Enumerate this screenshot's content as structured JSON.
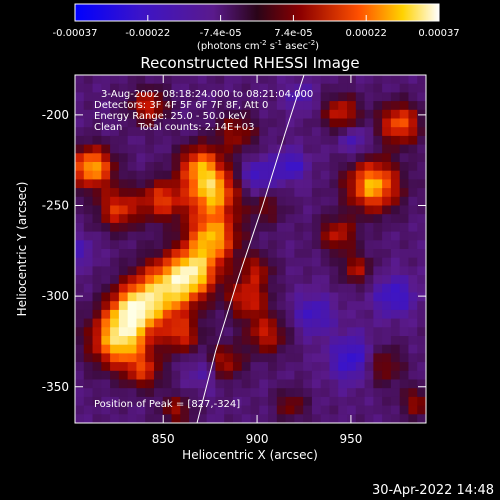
{
  "footer": {
    "datetime": "30-Apr-2022 14:48"
  },
  "colorbar": {
    "tick_labels": [
      "-0.00037",
      "-0.00022",
      "-7.4e-05",
      "7.4e-05",
      "0.00022",
      "0.00037"
    ],
    "range": [
      -0.00037,
      0.00037
    ],
    "unit_parts": [
      "(photons cm",
      "-2",
      " s",
      "-1",
      " asec",
      "-2",
      ")"
    ]
  },
  "chart_data": {
    "type": "heatmap",
    "title": "Reconstructed RHESSI Image",
    "xlabel": "Heliocentric X (arcsec)",
    "ylabel": "Heliocentric Y (arcsec)",
    "xlim": [
      803,
      990
    ],
    "ylim": [
      -370,
      -178
    ],
    "x_ticks": [
      850,
      900,
      950
    ],
    "y_ticks": [
      -200,
      -250,
      -300,
      -350
    ],
    "x_tick_labels": [
      "850",
      "900",
      "950"
    ],
    "y_tick_labels": [
      "-200",
      "-250",
      "-300",
      "-350"
    ],
    "annotations": [
      "3-Aug-2002 08:18:24.000 to 08:21:04.000",
      "Detectors: 3F 4F 5F 6F 7F 8F, Att 0",
      "Energy Range: 25.0 - 50.0 keV",
      "Clean     Total counts: 2.14E+03"
    ],
    "peak_label": "Position of Peak = [827,-324]",
    "peak": {
      "x": 827,
      "y": -324
    },
    "limb": [
      [
        868,
        -370
      ],
      [
        878,
        -330
      ],
      [
        890,
        -290
      ],
      [
        903,
        -250
      ],
      [
        915,
        -210
      ],
      [
        925,
        -178
      ]
    ],
    "blobs": [
      {
        "x": 827,
        "y": -324,
        "amp": 1.0,
        "s": 11
      },
      {
        "x": 834,
        "y": -307,
        "amp": 0.8,
        "s": 9
      },
      {
        "x": 851,
        "y": -297,
        "amp": 0.9,
        "s": 12
      },
      {
        "x": 866,
        "y": -287,
        "amp": 0.8,
        "s": 9
      },
      {
        "x": 876,
        "y": -268,
        "amp": 0.85,
        "s": 10
      },
      {
        "x": 876,
        "y": -242,
        "amp": 0.9,
        "s": 10
      },
      {
        "x": 869,
        "y": -227,
        "amp": 0.6,
        "s": 8
      },
      {
        "x": 849,
        "y": -247,
        "amp": 0.6,
        "s": 8
      },
      {
        "x": 826,
        "y": -252,
        "amp": 0.6,
        "s": 8
      },
      {
        "x": 812,
        "y": -229,
        "amp": 0.9,
        "s": 8
      },
      {
        "x": 842,
        "y": -195,
        "amp": 0.55,
        "s": 7
      },
      {
        "x": 895,
        "y": -301,
        "amp": 0.55,
        "s": 8
      },
      {
        "x": 905,
        "y": -321,
        "amp": 0.5,
        "s": 8
      },
      {
        "x": 882,
        "y": -337,
        "amp": 0.55,
        "s": 7
      },
      {
        "x": 860,
        "y": -322,
        "amp": 0.5,
        "s": 7
      },
      {
        "x": 840,
        "y": -342,
        "amp": 0.45,
        "s": 7
      },
      {
        "x": 962,
        "y": -239,
        "amp": 0.9,
        "s": 10
      },
      {
        "x": 976,
        "y": -205,
        "amp": 0.7,
        "s": 8
      },
      {
        "x": 945,
        "y": -199,
        "amp": 0.55,
        "s": 7
      },
      {
        "x": 943,
        "y": -266,
        "amp": 0.5,
        "s": 7
      },
      {
        "x": 953,
        "y": -285,
        "amp": 0.45,
        "s": 6
      },
      {
        "x": 966,
        "y": -338,
        "amp": 0.45,
        "s": 8
      },
      {
        "x": 985,
        "y": -359,
        "amp": 0.4,
        "s": 6
      },
      {
        "x": 905,
        "y": -251,
        "amp": 0.3,
        "s": 7
      },
      {
        "x": 918,
        "y": -360,
        "amp": 0.35,
        "s": 6
      },
      {
        "x": 857,
        "y": -363,
        "amp": 0.4,
        "s": 6
      },
      {
        "x": 889,
        "y": -210,
        "amp": 0.4,
        "s": 8
      },
      {
        "x": 900,
        "y": -285,
        "amp": 0.4,
        "s": 6
      },
      {
        "x": 930,
        "y": -310,
        "amp": -0.35,
        "s": 8
      },
      {
        "x": 952,
        "y": -335,
        "amp": -0.5,
        "s": 9
      },
      {
        "x": 973,
        "y": -300,
        "amp": -0.4,
        "s": 8
      },
      {
        "x": 900,
        "y": -234,
        "amp": -0.4,
        "s": 7
      },
      {
        "x": 918,
        "y": -228,
        "amp": -0.4,
        "s": 6
      },
      {
        "x": 873,
        "y": -341,
        "amp": -0.3,
        "s": 7
      },
      {
        "x": 952,
        "y": -214,
        "amp": -0.3,
        "s": 6
      },
      {
        "x": 805,
        "y": -275,
        "amp": -0.25,
        "s": 6
      },
      {
        "x": 923,
        "y": -190,
        "amp": -0.25,
        "s": 6
      }
    ]
  }
}
